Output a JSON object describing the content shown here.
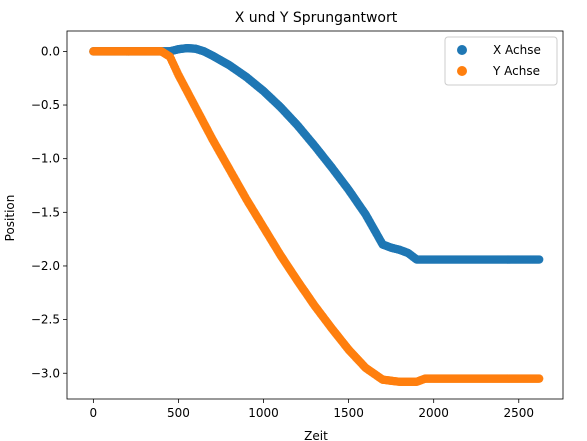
{
  "chart_data": {
    "type": "scatter",
    "title": "X und Y Sprungantwort",
    "xlabel": "Zeit",
    "ylabel": "Position",
    "xlim": [
      -155,
      2760
    ],
    "ylim": [
      -3.24,
      0.19
    ],
    "xticks": [
      0,
      500,
      1000,
      1500,
      2000,
      2500
    ],
    "yticks": [
      0.0,
      -0.5,
      -1.0,
      -1.5,
      -2.0,
      -2.5,
      -3.0
    ],
    "grid": false,
    "legend_placement": "top-right",
    "series": [
      {
        "name": "X Achse",
        "color": "#1f77b4",
        "x": [
          0,
          100,
          200,
          300,
          400,
          450,
          500,
          550,
          600,
          650,
          700,
          800,
          900,
          1000,
          1100,
          1200,
          1300,
          1400,
          1500,
          1600,
          1700,
          1750,
          1800,
          1850,
          1900,
          2000,
          2100,
          2200,
          2300,
          2400,
          2500,
          2620
        ],
        "y": [
          0.0,
          0.0,
          0.0,
          0.0,
          0.0,
          0.0,
          0.02,
          0.03,
          0.025,
          0.0,
          -0.04,
          -0.13,
          -0.24,
          -0.37,
          -0.52,
          -0.69,
          -0.88,
          -1.08,
          -1.29,
          -1.52,
          -1.8,
          -1.83,
          -1.85,
          -1.88,
          -1.94,
          -1.94,
          -1.94,
          -1.94,
          -1.94,
          -1.94,
          -1.94,
          -1.94
        ]
      },
      {
        "name": "Y Achse",
        "color": "#ff7f0e",
        "x": [
          0,
          100,
          200,
          300,
          400,
          450,
          500,
          600,
          700,
          800,
          900,
          1000,
          1100,
          1200,
          1300,
          1400,
          1500,
          1600,
          1700,
          1750,
          1800,
          1850,
          1900,
          1950,
          2000,
          2100,
          2200,
          2300,
          2400,
          2500,
          2620
        ],
        "y": [
          0.0,
          0.0,
          0.0,
          0.0,
          0.0,
          -0.05,
          -0.22,
          -0.52,
          -0.82,
          -1.1,
          -1.38,
          -1.64,
          -1.9,
          -2.14,
          -2.37,
          -2.58,
          -2.78,
          -2.95,
          -3.06,
          -3.07,
          -3.08,
          -3.08,
          -3.08,
          -3.05,
          -3.05,
          -3.05,
          -3.05,
          -3.05,
          -3.05,
          -3.05,
          -3.05
        ]
      }
    ]
  }
}
